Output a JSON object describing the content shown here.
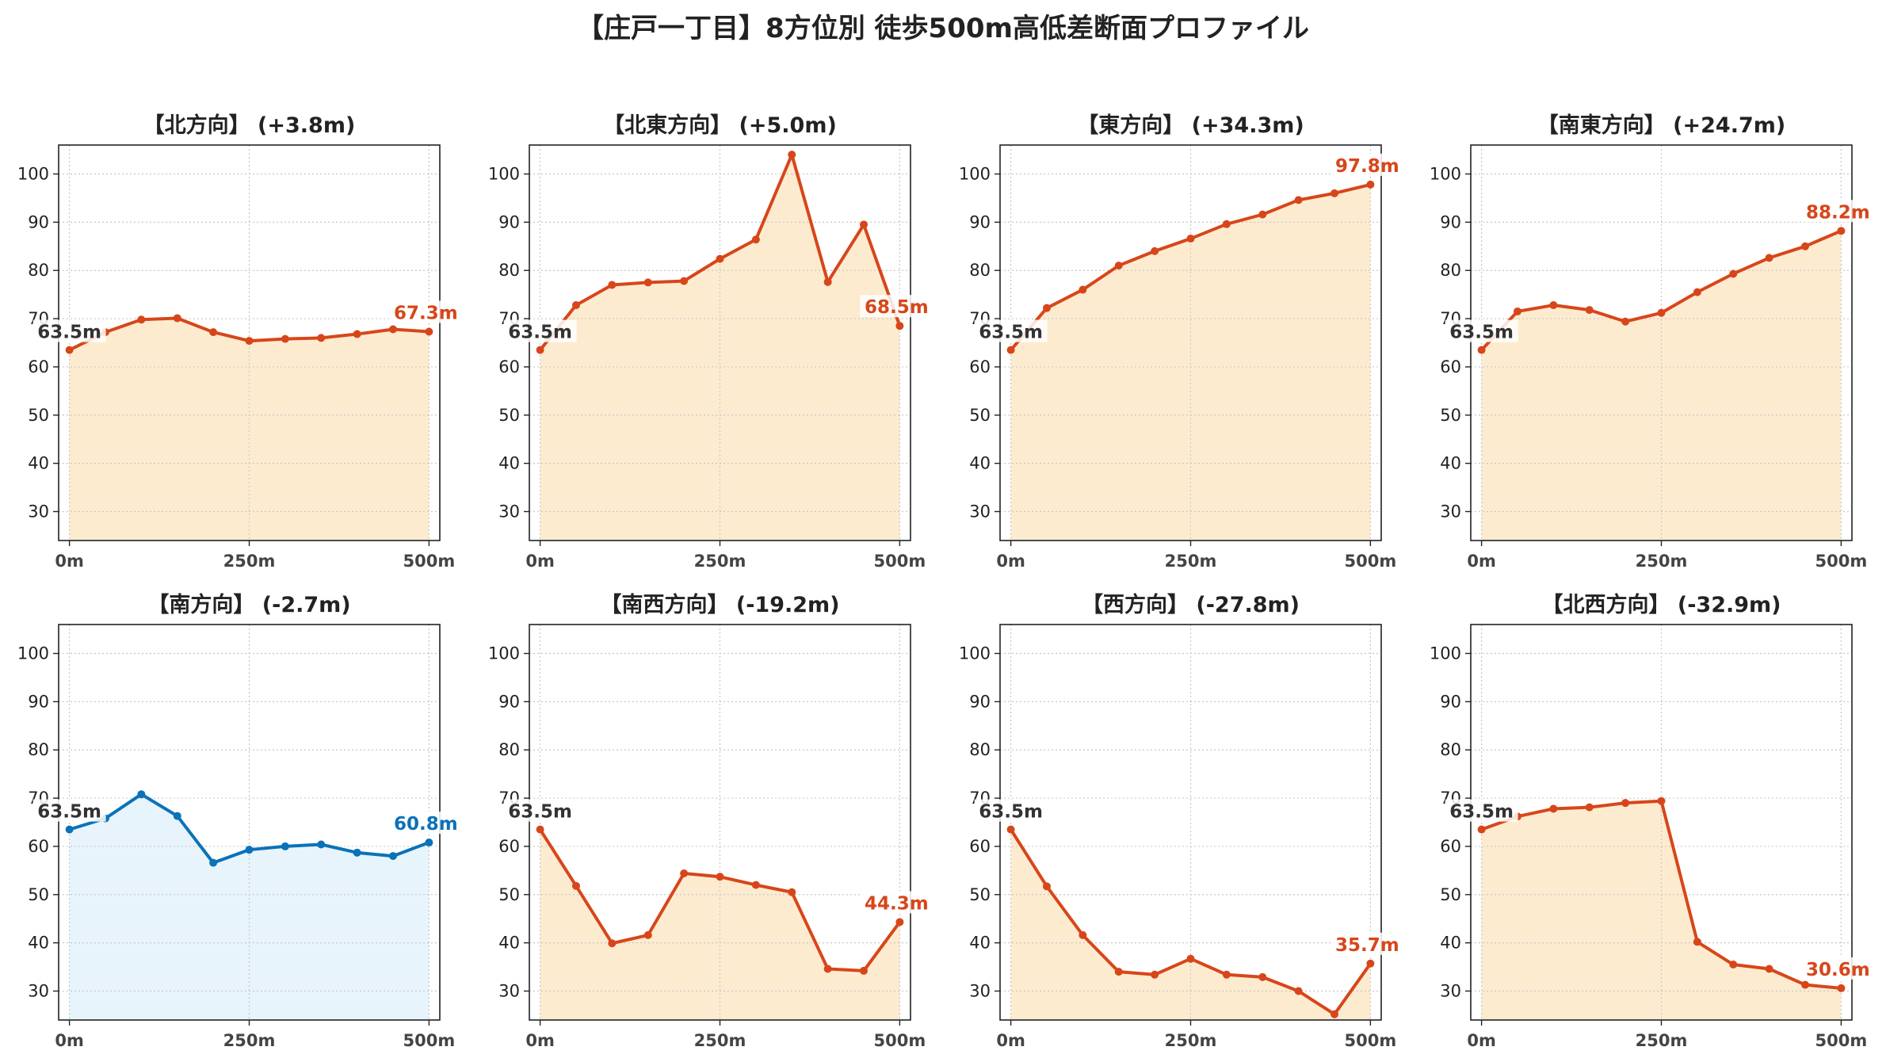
{
  "figure": {
    "title": "【庄戸一丁目】8方位別 徒歩500m高低差断面プロファイル"
  },
  "colors": {
    "rise": "#d7461a",
    "rise_fill": "#fdebd0",
    "fall": "#0a72b8",
    "fall_fill": "#e7f4fb",
    "start_label": "#333333"
  },
  "chart_data": [
    {
      "type": "line",
      "title": "【北方向】 (+3.8m)",
      "x": [
        0,
        50,
        100,
        150,
        200,
        250,
        300,
        350,
        400,
        450,
        500
      ],
      "values": [
        63.5,
        67.2,
        69.8,
        70.1,
        67.2,
        65.4,
        65.8,
        66.0,
        66.8,
        67.8,
        67.3
      ],
      "start_label": "63.5m",
      "end_label": "67.3m",
      "xticks": [
        "0m",
        "250m",
        "500m"
      ],
      "yticks": [
        30,
        40,
        50,
        60,
        70,
        80,
        90,
        100
      ],
      "ylim": [
        24,
        106
      ],
      "xlim": [
        -15,
        515
      ],
      "grid": true,
      "style": "rise"
    },
    {
      "type": "line",
      "title": "【北東方向】 (+5.0m)",
      "x": [
        0,
        50,
        100,
        150,
        200,
        250,
        300,
        350,
        400,
        450,
        500
      ],
      "values": [
        63.5,
        72.8,
        77.0,
        77.5,
        77.8,
        82.4,
        86.4,
        104.0,
        77.6,
        89.5,
        68.5
      ],
      "start_label": "63.5m",
      "end_label": "68.5m",
      "xticks": [
        "0m",
        "250m",
        "500m"
      ],
      "yticks": [
        30,
        40,
        50,
        60,
        70,
        80,
        90,
        100
      ],
      "ylim": [
        24,
        106
      ],
      "xlim": [
        -15,
        515
      ],
      "grid": true,
      "style": "rise"
    },
    {
      "type": "line",
      "title": "【東方向】 (+34.3m)",
      "x": [
        0,
        50,
        100,
        150,
        200,
        250,
        300,
        350,
        400,
        450,
        500
      ],
      "values": [
        63.5,
        72.2,
        76.0,
        81.0,
        84.0,
        86.6,
        89.6,
        91.6,
        94.6,
        96.0,
        97.8
      ],
      "start_label": "63.5m",
      "end_label": "97.8m",
      "xticks": [
        "0m",
        "250m",
        "500m"
      ],
      "yticks": [
        30,
        40,
        50,
        60,
        70,
        80,
        90,
        100
      ],
      "ylim": [
        24,
        106
      ],
      "xlim": [
        -15,
        515
      ],
      "grid": true,
      "style": "rise"
    },
    {
      "type": "line",
      "title": "【南東方向】 (+24.7m)",
      "x": [
        0,
        50,
        100,
        150,
        200,
        250,
        300,
        350,
        400,
        450,
        500
      ],
      "values": [
        63.5,
        71.5,
        72.8,
        71.8,
        69.4,
        71.2,
        75.5,
        79.3,
        82.6,
        85.0,
        88.2
      ],
      "start_label": "63.5m",
      "end_label": "88.2m",
      "xticks": [
        "0m",
        "250m",
        "500m"
      ],
      "yticks": [
        30,
        40,
        50,
        60,
        70,
        80,
        90,
        100
      ],
      "ylim": [
        24,
        106
      ],
      "xlim": [
        -15,
        515
      ],
      "grid": true,
      "style": "rise"
    },
    {
      "type": "line",
      "title": "【南方向】 (-2.7m)",
      "x": [
        0,
        50,
        100,
        150,
        200,
        250,
        300,
        350,
        400,
        450,
        500
      ],
      "values": [
        63.5,
        65.8,
        70.8,
        66.3,
        56.6,
        59.3,
        60.0,
        60.4,
        58.7,
        58.0,
        60.8
      ],
      "start_label": "63.5m",
      "end_label": "60.8m",
      "xticks": [
        "0m",
        "250m",
        "500m"
      ],
      "yticks": [
        30,
        40,
        50,
        60,
        70,
        80,
        90,
        100
      ],
      "ylim": [
        24,
        106
      ],
      "xlim": [
        -15,
        515
      ],
      "grid": true,
      "style": "fall"
    },
    {
      "type": "line",
      "title": "【南西方向】 (-19.2m)",
      "x": [
        0,
        50,
        100,
        150,
        200,
        250,
        300,
        350,
        400,
        450,
        500
      ],
      "values": [
        63.5,
        51.8,
        39.9,
        41.6,
        54.4,
        53.7,
        52.0,
        50.5,
        34.6,
        34.2,
        44.3
      ],
      "start_label": "63.5m",
      "end_label": "44.3m",
      "xticks": [
        "0m",
        "250m",
        "500m"
      ],
      "yticks": [
        30,
        40,
        50,
        60,
        70,
        80,
        90,
        100
      ],
      "ylim": [
        24,
        106
      ],
      "xlim": [
        -15,
        515
      ],
      "grid": true,
      "style": "rise"
    },
    {
      "type": "line",
      "title": "【西方向】 (-27.8m)",
      "x": [
        0,
        50,
        100,
        150,
        200,
        250,
        300,
        350,
        400,
        450,
        500
      ],
      "values": [
        63.5,
        51.7,
        41.6,
        34.0,
        33.4,
        36.7,
        33.4,
        32.9,
        30.0,
        25.2,
        35.7
      ],
      "start_label": "63.5m",
      "end_label": "35.7m",
      "xticks": [
        "0m",
        "250m",
        "500m"
      ],
      "yticks": [
        30,
        40,
        50,
        60,
        70,
        80,
        90,
        100
      ],
      "ylim": [
        24,
        106
      ],
      "xlim": [
        -15,
        515
      ],
      "grid": true,
      "style": "rise"
    },
    {
      "type": "line",
      "title": "【北西方向】 (-32.9m)",
      "x": [
        0,
        50,
        100,
        150,
        200,
        250,
        300,
        350,
        400,
        450,
        500
      ],
      "values": [
        63.5,
        66.2,
        67.8,
        68.1,
        69.0,
        69.4,
        40.2,
        35.5,
        34.6,
        31.3,
        30.6
      ],
      "start_label": "63.5m",
      "end_label": "30.6m",
      "xticks": [
        "0m",
        "250m",
        "500m"
      ],
      "yticks": [
        30,
        40,
        50,
        60,
        70,
        80,
        90,
        100
      ],
      "ylim": [
        24,
        106
      ],
      "xlim": [
        -15,
        515
      ],
      "grid": true,
      "style": "rise"
    }
  ]
}
